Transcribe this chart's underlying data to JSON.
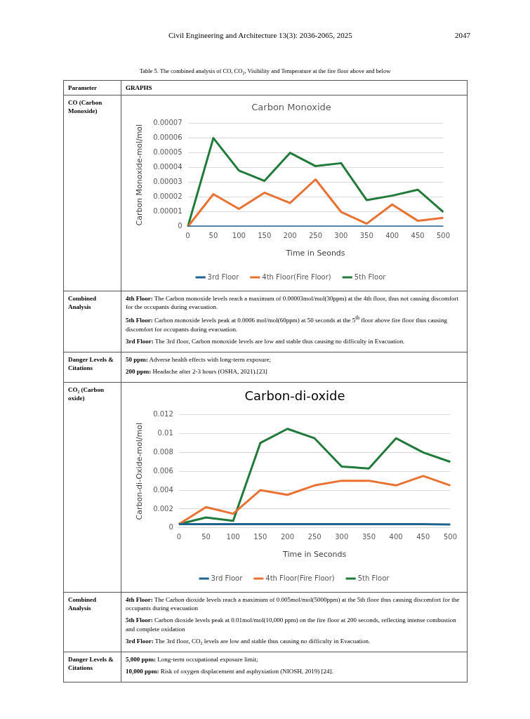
{
  "chart_data": [
    {
      "type": "line",
      "title": "Carbon Monoxide",
      "xlabel": "Time in Seonds",
      "ylabel": "Carbon Monoxide-mol/mol",
      "categories": [
        "0",
        "50",
        "100",
        "150",
        "200",
        "250",
        "300",
        "350",
        "400",
        "450",
        "500"
      ],
      "series": [
        {
          "name": "3rd Floor",
          "color": "#1f6391",
          "values": [
            0,
            0,
            0,
            0,
            0,
            0,
            0,
            0,
            0,
            0,
            0
          ]
        },
        {
          "name": "4th Floor(Fire Floor)",
          "color": "#e97132",
          "values": [
            0,
            2.2e-05,
            1.2e-05,
            2.3e-05,
            1.6e-05,
            3.2e-05,
            1e-05,
            2e-06,
            1.5e-05,
            4e-06,
            6e-06
          ]
        },
        {
          "name": "5th Floor",
          "color": "#207a3a",
          "values": [
            0,
            6e-05,
            3.8e-05,
            3.1e-05,
            5e-05,
            4.1e-05,
            4.3e-05,
            1.8e-05,
            2.1e-05,
            2.5e-05,
            1e-05
          ]
        }
      ],
      "ylim": [
        0,
        7e-05
      ],
      "yticks": [
        0,
        {
          "value": 1e-05,
          "label": "0.00001"
        },
        {
          "value": 2e-05,
          "label": "0.00002"
        },
        {
          "value": 3e-05,
          "label": "0.00003"
        },
        {
          "value": 4e-05,
          "label": "0.00004"
        },
        {
          "value": 5e-05,
          "label": "0.00005"
        },
        {
          "value": 6e-05,
          "label": "0.00006"
        },
        {
          "value": 7e-05,
          "label": "0.00007"
        }
      ],
      "grid": "y",
      "legend": "bottom",
      "marker": "none",
      "line_style": "solid",
      "annotations": [
        "Civil Engineering and Architecture 13(3): 2036-2065, 2025",
        "2047",
        "Table 5.    The combined analysis of CO, CO₂, Visibility and Temperature at the fire floor above and below",
        "Parameter",
        "GRAPHS",
        "CO (Carbon Monoxide)",
        "Combined Analysis",
        "4th Floor: The Carbon monoxide levels reach a maximum of 0.00003mol/mol(30ppm) at the 4th floor, thus not causing discomfort for the occupants during evacuation.",
        "5th Floor: Carbon monoxide levels peak at 0.0006 mol/mol(60ppm) at 50 seconds at the 5$^{th}$ floor above fire floor thus causing discomfort for occupants during evacuation.",
        "3rd Floor: The 3rd floor, Carbon monoxide levels are low and stable thus causing no difficulty in Evacuation.",
        "Danger Levels & Citations",
        "50 ppm: Adverse health effects with long-term exposure;",
        "200 ppm: Headache after 2-3 hours (OSHA, 2021).[23]"
      ]
    },
    {
      "type": "line",
      "title": "Carbon-di-oxide",
      "xlabel": "Time in Seconds",
      "ylabel": "Carbon-di-Oxide-mol/mol",
      "categories": [
        "0",
        "50",
        "100",
        "150",
        "200",
        "250",
        "300",
        "350",
        "400",
        "450",
        "500"
      ],
      "series": [
        {
          "name": "3rd Floor",
          "color": "#1f6391",
          "values": [
            0.0004,
            0.0004,
            0.0004,
            0.0004,
            0.0004,
            0.0004,
            0.0004,
            0.0004,
            0.0004,
            0.0004,
            0.00035
          ]
        },
        {
          "name": "4th Floor(Fire Floor)",
          "color": "#e97132",
          "values": [
            0.0004,
            0.0022,
            0.0015,
            0.004,
            0.0035,
            0.0045,
            0.005,
            0.005,
            0.0045,
            0.0055,
            0.0045
          ]
        },
        {
          "name": "5th Floor",
          "color": "#207a3a",
          "values": [
            0.0004,
            0.0011,
            0.00075,
            0.009,
            0.0105,
            0.0095,
            0.0065,
            0.0063,
            0.0095,
            0.008,
            0.007
          ]
        }
      ],
      "ylim": [
        0,
        0.012
      ],
      "yticks": [
        0,
        0.002,
        0.004,
        0.006,
        0.008,
        0.01,
        0.012
      ],
      "grid": "y",
      "legend": "bottom",
      "marker": "none",
      "line_style": "solid",
      "annotations": [
        "CO₂ (Carbon oxide)",
        "Combined Analysis",
        "4th Floor: The Carbon dioxide levels reach a maximum of 0.005mol/mol(5000ppm) at the 5th floor thus causing discomfort for the occupants during evacuation",
        "5th Floor: Carbon dioxide levels peak at 0.01mol/mol(10,000 ppm) on the fire floor at 200 seconds, reflecting intense combustion and complete oxidation",
        "3rd Floor: The 3rd floor, CO₂ levels are low and stable thus causing no difficulty in Evacuation.",
        "Danger Levels & Citations",
        "5,000 ppm: Long-term occupational exposure limit;",
        "10,000 ppm: Risk of oxygen displacement and asphyxiation (NIOSH, 2019) [24]."
      ]
    }
  ]
}
